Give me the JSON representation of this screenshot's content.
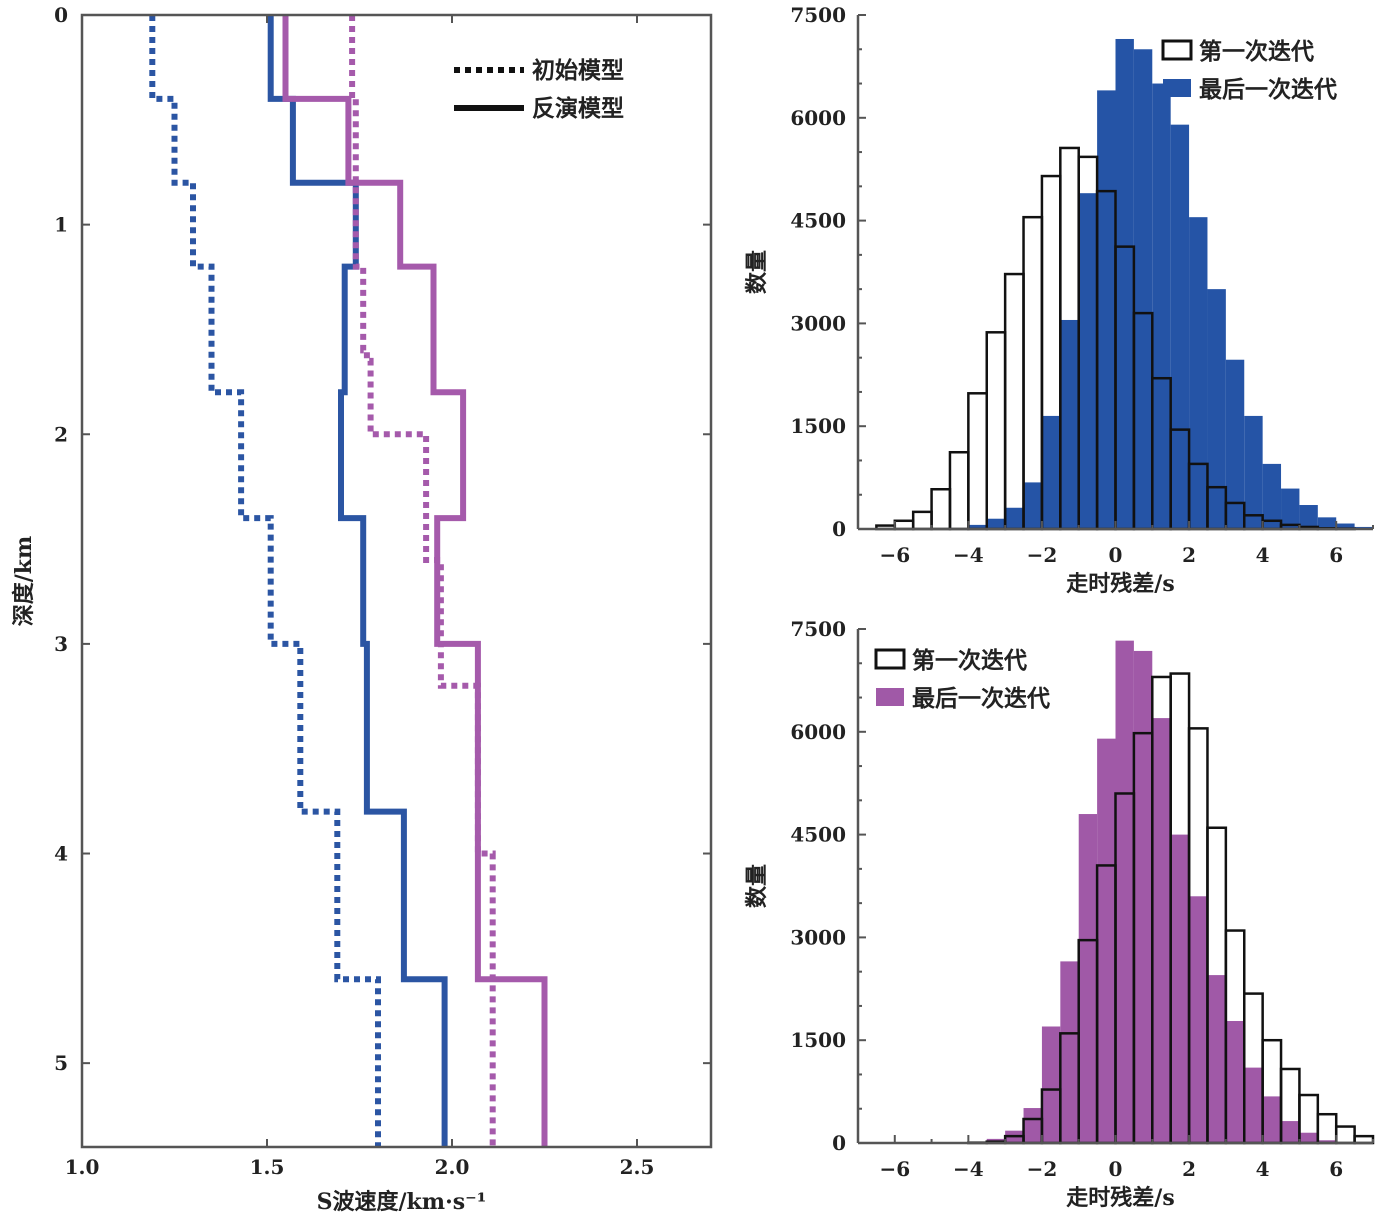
{
  "chart_data": [
    {
      "type": "line",
      "xlabel": "S波速度/km·s⁻¹",
      "ylabel": "深度/km",
      "xlim": [
        1.0,
        2.7
      ],
      "ylim": [
        0,
        5.4
      ],
      "y_inverted": true,
      "xticks": [
        "1.0",
        "1.5",
        "2.0",
        "2.5"
      ],
      "xtick_values": [
        1.0,
        1.5,
        2.0,
        2.5
      ],
      "yticks": [
        "0",
        "1",
        "2",
        "3",
        "4",
        "5"
      ],
      "ytick_values": [
        0,
        1,
        2,
        3,
        4,
        5
      ],
      "legend": [
        {
          "label": "初始模型",
          "style": "dotted"
        },
        {
          "label": "反演模型",
          "style": "solid"
        }
      ],
      "legend_position": "top-right",
      "colors": {
        "blue": "#2b55a3",
        "purple": "#a55aab"
      },
      "series": [
        {
          "color": "blue",
          "style": "dotted",
          "points": [
            [
              1.19,
              0
            ],
            [
              1.19,
              0.4
            ],
            [
              1.25,
              0.4
            ],
            [
              1.25,
              0.8
            ],
            [
              1.3,
              0.8
            ],
            [
              1.3,
              1.2
            ],
            [
              1.35,
              1.2
            ],
            [
              1.35,
              1.8
            ],
            [
              1.43,
              1.8
            ],
            [
              1.43,
              2.4
            ],
            [
              1.51,
              2.4
            ],
            [
              1.51,
              3.0
            ],
            [
              1.59,
              3.0
            ],
            [
              1.59,
              3.8
            ],
            [
              1.69,
              3.8
            ],
            [
              1.69,
              4.6
            ],
            [
              1.8,
              4.6
            ],
            [
              1.8,
              5.4
            ]
          ]
        },
        {
          "color": "blue",
          "style": "solid",
          "points": [
            [
              1.51,
              0
            ],
            [
              1.51,
              0.4
            ],
            [
              1.57,
              0.4
            ],
            [
              1.57,
              0.8
            ],
            [
              1.74,
              0.8
            ],
            [
              1.74,
              1.2
            ],
            [
              1.71,
              1.2
            ],
            [
              1.71,
              1.8
            ],
            [
              1.7,
              1.8
            ],
            [
              1.7,
              2.4
            ],
            [
              1.76,
              2.4
            ],
            [
              1.76,
              3.0
            ],
            [
              1.77,
              3.0
            ],
            [
              1.77,
              3.8
            ],
            [
              1.87,
              3.8
            ],
            [
              1.87,
              4.6
            ],
            [
              1.98,
              4.6
            ],
            [
              1.98,
              5.4
            ]
          ]
        },
        {
          "color": "purple",
          "style": "dotted",
          "points": [
            [
              1.73,
              0
            ],
            [
              1.73,
              0.4
            ],
            [
              1.74,
              0.4
            ],
            [
              1.74,
              1.2
            ],
            [
              1.76,
              1.2
            ],
            [
              1.76,
              1.6
            ],
            [
              1.77,
              1.6
            ],
            [
              1.77,
              1.65
            ],
            [
              1.78,
              1.65
            ],
            [
              1.78,
              2.0
            ],
            [
              1.93,
              2.0
            ],
            [
              1.93,
              2.6
            ],
            [
              1.97,
              2.6
            ],
            [
              1.97,
              3.2
            ],
            [
              2.07,
              3.2
            ],
            [
              2.07,
              4.0
            ],
            [
              2.11,
              4.0
            ],
            [
              2.11,
              5.4
            ]
          ]
        },
        {
          "color": "purple",
          "style": "solid",
          "points": [
            [
              1.55,
              0
            ],
            [
              1.55,
              0.4
            ],
            [
              1.72,
              0.4
            ],
            [
              1.72,
              0.8
            ],
            [
              1.86,
              0.8
            ],
            [
              1.86,
              1.2
            ],
            [
              1.95,
              1.2
            ],
            [
              1.95,
              1.8
            ],
            [
              2.03,
              1.8
            ],
            [
              2.03,
              2.4
            ],
            [
              1.96,
              2.4
            ],
            [
              1.96,
              3.0
            ],
            [
              2.07,
              3.0
            ],
            [
              2.07,
              4.6
            ],
            [
              2.25,
              4.6
            ],
            [
              2.25,
              5.4
            ]
          ]
        }
      ]
    },
    {
      "type": "bar",
      "xlabel": "走时残差/s",
      "ylabel": "数量",
      "xlim": [
        -7,
        7
      ],
      "ylim": [
        0,
        7500
      ],
      "xticks": [
        "−6",
        "−4",
        "−2",
        "0",
        "2",
        "4",
        "6"
      ],
      "xtick_values": [
        -6,
        -4,
        -2,
        0,
        2,
        4,
        6
      ],
      "yticks": [
        "0",
        "1500",
        "3000",
        "4500",
        "6000",
        "7500"
      ],
      "ytick_values": [
        0,
        1500,
        3000,
        4500,
        6000,
        7500
      ],
      "bin_edges": [
        -6.5,
        -6.0,
        -5.5,
        -5.0,
        -4.5,
        -4.0,
        -3.5,
        -3.0,
        -2.5,
        -2.0,
        -1.5,
        -1.0,
        -0.5,
        0.0,
        0.5,
        1.0,
        1.5,
        2.0,
        2.5,
        3.0,
        3.5,
        4.0,
        4.5,
        5.0,
        5.5,
        6.0,
        6.5,
        7.0
      ],
      "legend_position": "top-right",
      "fill_color": "#2554a6",
      "series": [
        {
          "name": "第一次迭代",
          "style": "outline",
          "values": [
            50,
            120,
            250,
            580,
            1120,
            1980,
            2870,
            3720,
            4550,
            5150,
            5560,
            5430,
            4930,
            4120,
            3150,
            2200,
            1450,
            950,
            610,
            380,
            200,
            120,
            60,
            30,
            10,
            5,
            0
          ]
        },
        {
          "name": "最后一次迭代",
          "style": "filled",
          "values": [
            0,
            0,
            0,
            5,
            15,
            60,
            150,
            310,
            680,
            1650,
            3050,
            4900,
            6400,
            7150,
            7000,
            6500,
            5900,
            4550,
            3500,
            2470,
            1650,
            950,
            590,
            350,
            170,
            80,
            30
          ]
        }
      ]
    },
    {
      "type": "bar",
      "xlabel": "走时残差/s",
      "ylabel": "数量",
      "xlim": [
        -7,
        7
      ],
      "ylim": [
        0,
        7500
      ],
      "xticks": [
        "−6",
        "−4",
        "−2",
        "0",
        "2",
        "4",
        "6"
      ],
      "xtick_values": [
        -6,
        -4,
        -2,
        0,
        2,
        4,
        6
      ],
      "yticks": [
        "0",
        "1500",
        "3000",
        "4500",
        "6000",
        "7500"
      ],
      "ytick_values": [
        0,
        1500,
        3000,
        4500,
        6000,
        7500
      ],
      "bin_edges": [
        -6.5,
        -6.0,
        -5.5,
        -5.0,
        -4.5,
        -4.0,
        -3.5,
        -3.0,
        -2.5,
        -2.0,
        -1.5,
        -1.0,
        -0.5,
        0.0,
        0.5,
        1.0,
        1.5,
        2.0,
        2.5,
        3.0,
        3.5,
        4.0,
        4.5,
        5.0,
        5.5,
        6.0,
        6.5,
        7.0
      ],
      "legend_position": "top-left",
      "fill_color": "#a059a7",
      "series": [
        {
          "name": "第一次迭代",
          "style": "outline",
          "values": [
            0,
            0,
            0,
            0,
            0,
            5,
            20,
            100,
            350,
            780,
            1600,
            2960,
            4050,
            5100,
            5980,
            6800,
            6850,
            6050,
            4600,
            3100,
            2180,
            1500,
            1080,
            700,
            420,
            240,
            100
          ]
        },
        {
          "name": "最后一次迭代",
          "style": "filled",
          "values": [
            0,
            0,
            0,
            0,
            5,
            15,
            60,
            180,
            510,
            1700,
            2650,
            4800,
            5900,
            7330,
            7180,
            6200,
            4500,
            3600,
            2450,
            1780,
            1100,
            680,
            320,
            150,
            40,
            0,
            0
          ]
        }
      ]
    }
  ]
}
